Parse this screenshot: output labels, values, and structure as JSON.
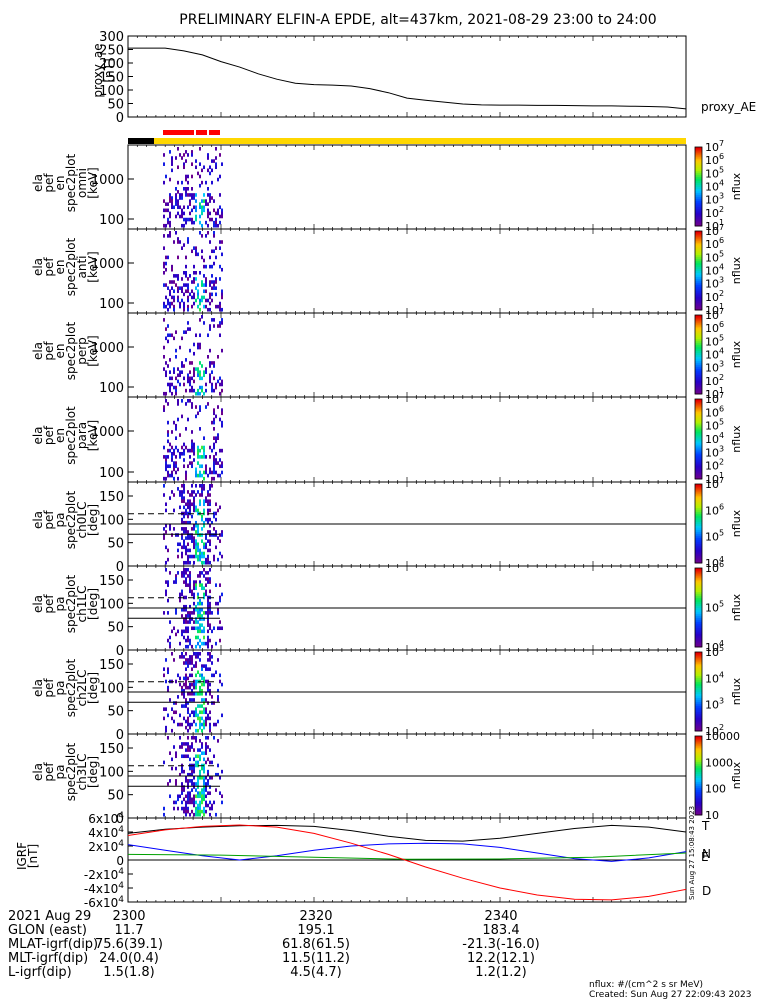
{
  "title": "PRELIMINARY ELFIN-A EPDE, alt=437km, 2021-08-29 23:00 to 24:00",
  "chart_data": [
    {
      "type": "line",
      "id": "proxy_ae",
      "ylabel_lines": [
        "proxy_ae",
        "[nT]"
      ],
      "ylim": [
        0,
        300
      ],
      "yticks": [
        "0",
        "50",
        "100",
        "150",
        "200",
        "250",
        "300"
      ],
      "legend": "proxy_AE",
      "series": [
        {
          "name": "proxy_AE",
          "x_minutes": [
            0,
            2,
            4,
            6,
            8,
            10,
            12,
            14,
            16,
            18,
            20,
            22,
            24,
            26,
            28,
            30,
            32,
            34,
            36,
            38,
            40,
            42,
            44,
            46,
            48,
            50,
            52,
            54,
            56,
            58,
            60
          ],
          "values": [
            255,
            255,
            255,
            245,
            230,
            205,
            185,
            160,
            140,
            125,
            120,
            118,
            115,
            105,
            90,
            70,
            62,
            55,
            48,
            45,
            44,
            44,
            43,
            43,
            42,
            41,
            41,
            40,
            39,
            37,
            30
          ]
        }
      ]
    },
    {
      "type": "heatmap",
      "id": "spec-omni",
      "ylabel_lines": [
        "ela",
        "pef",
        "en",
        "spec2plot",
        "omni",
        "[keV]"
      ],
      "yscale": "log",
      "yticks": [
        "100",
        "1000"
      ],
      "colorbar": {
        "label": "nflux",
        "ticks": [
          "10^1",
          "10^2",
          "10^3",
          "10^4",
          "10^5",
          "10^6",
          "10^7"
        ]
      }
    },
    {
      "type": "heatmap",
      "id": "spec-anti",
      "ylabel_lines": [
        "ela",
        "pef",
        "en",
        "spec2plot",
        "anti",
        "[keV]"
      ],
      "yscale": "log",
      "yticks": [
        "100",
        "1000"
      ],
      "colorbar": {
        "label": "nflux",
        "ticks": [
          "10^1",
          "10^2",
          "10^3",
          "10^4",
          "10^5",
          "10^6",
          "10^7"
        ]
      }
    },
    {
      "type": "heatmap",
      "id": "spec-perp",
      "ylabel_lines": [
        "ela",
        "pef",
        "en",
        "spec2plot",
        "perp",
        "[keV]"
      ],
      "yscale": "log",
      "yticks": [
        "100",
        "1000"
      ],
      "colorbar": {
        "label": "nflux",
        "ticks": [
          "10^1",
          "10^2",
          "10^3",
          "10^4",
          "10^5",
          "10^6",
          "10^7"
        ]
      }
    },
    {
      "type": "heatmap",
      "id": "spec-para",
      "ylabel_lines": [
        "ela",
        "pef",
        "en",
        "spec2plot",
        "para",
        "[keV]"
      ],
      "yscale": "log",
      "yticks": [
        "100",
        "1000"
      ],
      "colorbar": {
        "label": "nflux",
        "ticks": [
          "10^1",
          "10^2",
          "10^3",
          "10^4",
          "10^5",
          "10^6",
          "10^7"
        ]
      }
    },
    {
      "type": "heatmap",
      "id": "pa-ch0",
      "ylabel_lines": [
        "ela",
        "pef",
        "pa",
        "spec2plot",
        "ch0LC",
        "[deg]"
      ],
      "ylim": [
        0,
        180
      ],
      "yticks": [
        "0",
        "50",
        "100",
        "150"
      ],
      "colorbar": {
        "label": "nflux",
        "ticks": [
          "10^4",
          "10^5",
          "10^6",
          "10^7"
        ]
      }
    },
    {
      "type": "heatmap",
      "id": "pa-ch1",
      "ylabel_lines": [
        "ela",
        "pef",
        "pa",
        "spec2plot",
        "ch1LC",
        "[deg]"
      ],
      "ylim": [
        0,
        180
      ],
      "yticks": [
        "0",
        "50",
        "100",
        "150"
      ],
      "colorbar": {
        "label": "nflux",
        "ticks": [
          "10^4",
          "10^5",
          "10^6"
        ]
      }
    },
    {
      "type": "heatmap",
      "id": "pa-ch2",
      "ylabel_lines": [
        "ela",
        "pef",
        "pa",
        "spec2plot",
        "ch2LC",
        "[deg]"
      ],
      "ylim": [
        0,
        180
      ],
      "yticks": [
        "0",
        "50",
        "100",
        "150"
      ],
      "colorbar": {
        "label": "nflux",
        "ticks": [
          "10^2",
          "10^3",
          "10^4",
          "10^5"
        ]
      }
    },
    {
      "type": "heatmap",
      "id": "pa-ch3",
      "ylabel_lines": [
        "ela",
        "pef",
        "pa",
        "spec2plot",
        "ch3LC",
        "[deg]"
      ],
      "ylim": [
        0,
        180
      ],
      "yticks": [
        "0",
        "50",
        "100",
        "150"
      ],
      "colorbar": {
        "label": "nflux",
        "ticks": [
          "10",
          "100",
          "1000",
          "10000"
        ]
      }
    },
    {
      "type": "line",
      "id": "igrf",
      "ylabel_lines": [
        "IGRF",
        "[nT]"
      ],
      "ylim": [
        -60000,
        60000
      ],
      "yticks": [
        "-6x10^4",
        "-4x10^4",
        "-2x10^4",
        "0",
        "2x10^4",
        "4x10^4",
        "6x10^4"
      ],
      "series": [
        {
          "name": "T",
          "color": "#000000",
          "x_minutes": [
            0,
            4,
            8,
            12,
            16,
            20,
            24,
            28,
            32,
            36,
            40,
            44,
            48,
            52,
            56,
            60
          ],
          "values": [
            38000,
            44000,
            47000,
            49000,
            49500,
            48000,
            42000,
            34000,
            28000,
            27000,
            31000,
            38000,
            45000,
            49500,
            47000,
            40000
          ]
        },
        {
          "name": "N",
          "color": "#0000ff",
          "x_minutes": [
            0,
            4,
            8,
            12,
            16,
            20,
            24,
            28,
            32,
            36,
            40,
            44,
            48,
            52,
            56,
            60
          ],
          "values": [
            22000,
            14000,
            6000,
            0,
            6000,
            14000,
            20000,
            23000,
            24000,
            23000,
            18000,
            10000,
            2000,
            -2000,
            3000,
            12000
          ]
        },
        {
          "name": "E",
          "color": "#00a000",
          "x_minutes": [
            0,
            10,
            20,
            30,
            40,
            50,
            60
          ],
          "values": [
            8000,
            7000,
            4000,
            1000,
            1500,
            4000,
            10000
          ]
        },
        {
          "name": "D",
          "color": "#ff0000",
          "x_minutes": [
            0,
            4,
            8,
            12,
            16,
            20,
            24,
            28,
            32,
            36,
            40,
            44,
            48,
            52,
            56,
            60
          ],
          "values": [
            35000,
            43000,
            48000,
            50000,
            47000,
            38000,
            24000,
            8000,
            -10000,
            -26000,
            -40000,
            -50000,
            -56000,
            -57000,
            -52000,
            -42000
          ]
        }
      ]
    }
  ],
  "xaxis": {
    "rows": [
      {
        "label": "2021 Aug 29",
        "values": [
          "2300",
          "2320",
          "2340"
        ]
      },
      {
        "label": "GLON (east)",
        "values": [
          "11.7",
          "195.1",
          "183.4"
        ]
      },
      {
        "label": "MLAT-igrf(dip)",
        "values": [
          "75.6(39.1)",
          "61.8(61.5)",
          "-21.3(-16.0)"
        ]
      },
      {
        "label": "MLT-igrf(dip)",
        "values": [
          "24.0(0.4)",
          "11.5(11.2)",
          "12.2(12.1)"
        ]
      },
      {
        "label": "L-igrf(dip)",
        "values": [
          "1.5(1.8)",
          "4.5(4.7)",
          "1.2(1.2)"
        ]
      }
    ]
  },
  "footer": {
    "units": "nflux: #/(cm^2 s sr MeV)",
    "created": "Created: Sun Aug 27 22:09:43 2023",
    "side_stamp": "Sun Aug 27 15:08:43 2023"
  },
  "colors": {
    "bar_black": "#000000",
    "bar_red": "#ff0000",
    "bar_yellow": "#ffd700"
  }
}
